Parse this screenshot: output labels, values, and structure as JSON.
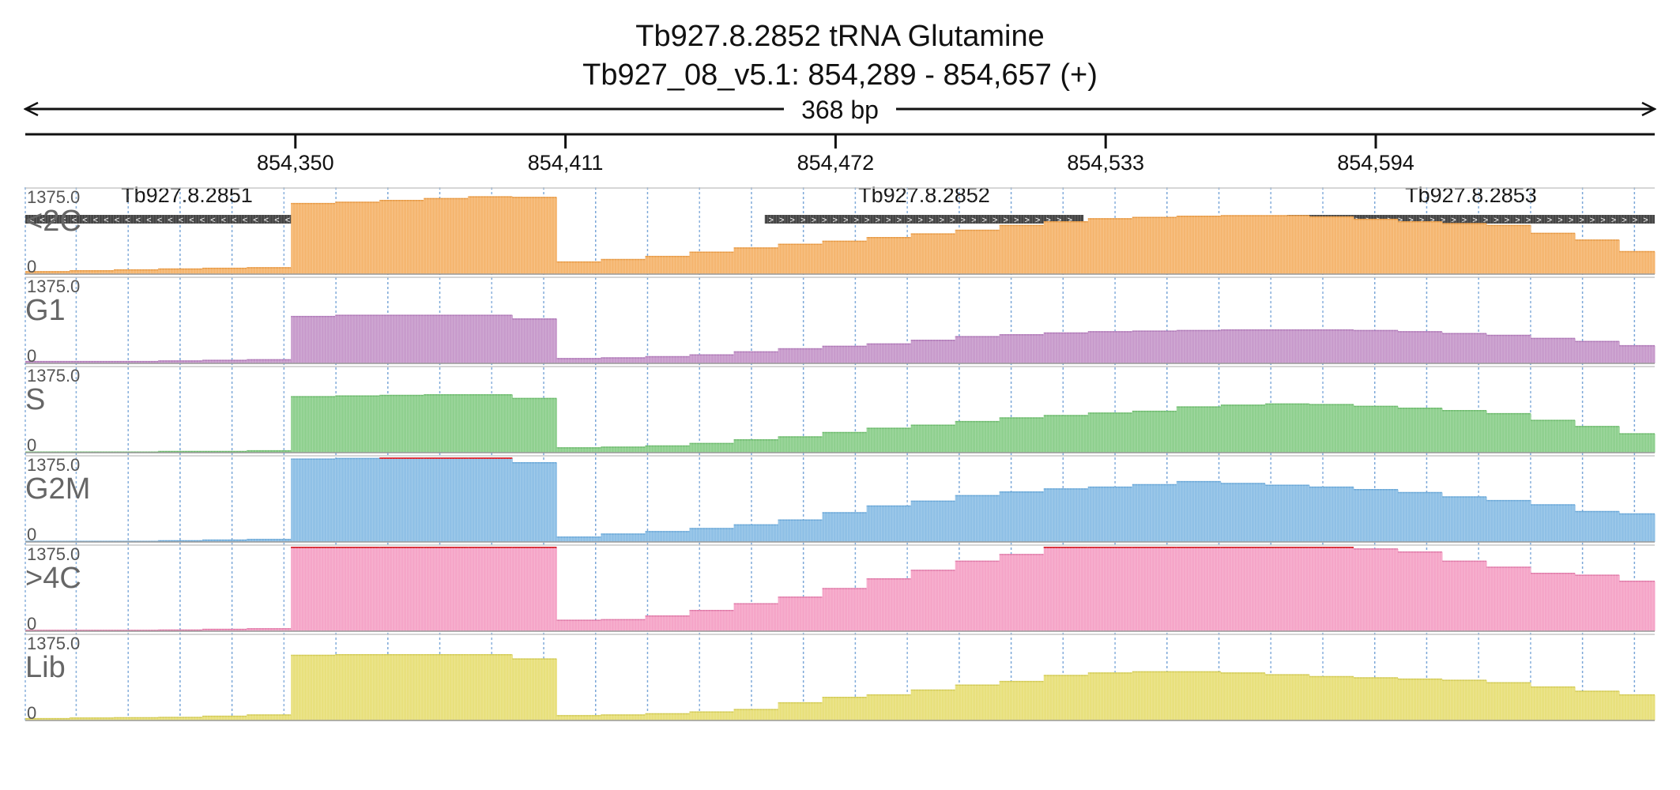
{
  "header": {
    "title": "Tb927.8.2852  tRNA Glutamine",
    "locus": "Tb927_08_v5.1: 854,289 - 854,657 (+)",
    "span_label": "368 bp"
  },
  "ruler": {
    "ticks": [
      "854,350",
      "854,411",
      "854,472",
      "854,533",
      "854,594"
    ]
  },
  "genes": [
    {
      "name": "Tb927.8.2851",
      "strand": "-"
    },
    {
      "name": "Tb927.8.2852",
      "strand": "+"
    },
    {
      "name": "Tb927.8.2853",
      "strand": "+"
    }
  ],
  "chart_data": {
    "type": "area",
    "region": {
      "chrom": "Tb927_08_v5.1",
      "start": 854289,
      "end": 854657,
      "strand": "+"
    },
    "xlim": [
      854289,
      854657
    ],
    "ruler_ticks": [
      854350,
      854411,
      854472,
      854533,
      854594
    ],
    "genes": [
      {
        "name": "Tb927.8.2851",
        "start": 854289,
        "end": 854362,
        "strand": "-"
      },
      {
        "name": "Tb927.8.2852",
        "start": 854456,
        "end": 854528,
        "strand": "+"
      },
      {
        "name": "Tb927.8.2853",
        "start": 854574,
        "end": 854657,
        "strand": "+"
      }
    ],
    "bin_size": 10,
    "bins_start": [
      854289,
      854299,
      854309,
      854319,
      854329,
      854339,
      854349,
      854359,
      854369,
      854379,
      854389,
      854399,
      854409,
      854419,
      854429,
      854439,
      854449,
      854459,
      854469,
      854479,
      854489,
      854499,
      854509,
      854519,
      854529,
      854539,
      854549,
      854559,
      854569,
      854579,
      854589,
      854599,
      854609,
      854619,
      854629,
      854639,
      854649
    ],
    "ylim": [
      0,
      1375.0
    ],
    "series": [
      {
        "name": "<2C",
        "color": "#f5b670",
        "line_color": "#e89a44",
        "values": [
          40,
          55,
          70,
          85,
          95,
          105,
          1160,
          1180,
          1210,
          1240,
          1270,
          1260,
          200,
          240,
          290,
          360,
          430,
          490,
          540,
          600,
          660,
          720,
          800,
          860,
          910,
          930,
          950,
          960,
          960,
          940,
          900,
          860,
          830,
          800,
          670,
          560,
          370
        ]
      },
      {
        "name": "G1",
        "color": "#c89bcc",
        "line_color": "#b07ab8",
        "values": [
          30,
          30,
          30,
          40,
          50,
          60,
          770,
          790,
          790,
          790,
          790,
          730,
          80,
          90,
          110,
          140,
          190,
          240,
          280,
          320,
          380,
          440,
          470,
          500,
          520,
          530,
          540,
          550,
          550,
          550,
          540,
          520,
          490,
          460,
          410,
          360,
          290
        ]
      },
      {
        "name": "S",
        "color": "#8fd08f",
        "line_color": "#6dbb6d",
        "values": [
          10,
          10,
          10,
          20,
          20,
          30,
          920,
          930,
          940,
          950,
          950,
          890,
          80,
          90,
          110,
          150,
          210,
          260,
          330,
          400,
          450,
          510,
          570,
          610,
          650,
          680,
          750,
          780,
          800,
          790,
          760,
          730,
          690,
          640,
          530,
          430,
          310
        ]
      },
      {
        "name": "G2M",
        "color": "#8fc0e6",
        "line_color": "#6aa8d8",
        "values": [
          10,
          10,
          10,
          20,
          30,
          40,
          1360,
          1370,
          1375,
          1375,
          1375,
          1300,
          80,
          130,
          170,
          220,
          280,
          360,
          480,
          590,
          670,
          760,
          820,
          870,
          900,
          940,
          990,
          960,
          930,
          900,
          860,
          810,
          740,
          680,
          610,
          500,
          460
        ]
      },
      {
        "name": ">4C",
        "color": "#f5a5c8",
        "line_color": "#e07aa8",
        "values": [
          15,
          15,
          15,
          20,
          30,
          40,
          1375,
          1375,
          1375,
          1375,
          1375,
          1375,
          180,
          190,
          250,
          340,
          450,
          560,
          700,
          860,
          1000,
          1150,
          1260,
          1375,
          1375,
          1375,
          1375,
          1375,
          1375,
          1375,
          1350,
          1300,
          1150,
          1050,
          950,
          920,
          820
        ]
      },
      {
        "name": "Lib",
        "color": "#e8e07c",
        "line_color": "#d3cb55",
        "values": [
          30,
          40,
          45,
          50,
          70,
          90,
          1070,
          1080,
          1080,
          1080,
          1080,
          1010,
          80,
          90,
          110,
          140,
          180,
          290,
          380,
          420,
          500,
          580,
          640,
          740,
          780,
          800,
          800,
          780,
          750,
          720,
          700,
          680,
          660,
          620,
          550,
          480,
          420
        ]
      }
    ]
  }
}
